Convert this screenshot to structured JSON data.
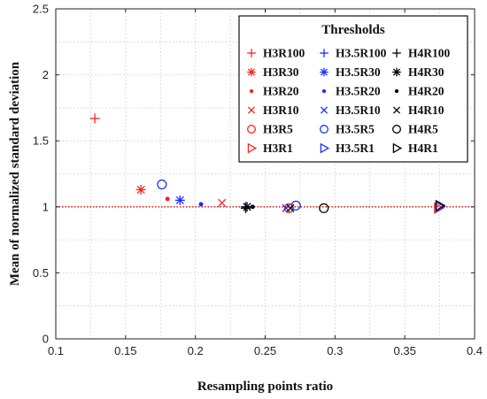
{
  "chart_data": {
    "type": "scatter",
    "xlabel": "Resampling points ratio",
    "ylabel": "Mean of normalized standard deviation",
    "xlim": [
      0.1,
      0.4
    ],
    "ylim": [
      0,
      2.5
    ],
    "xticks": [
      0.1,
      0.15,
      0.2,
      0.25,
      0.3,
      0.35,
      0.4
    ],
    "xtick_labels": [
      "0.1",
      "0.15",
      "0.2",
      "0.25",
      "0.3",
      "0.35",
      "0.4"
    ],
    "yticks": [
      0,
      0.5,
      1,
      1.5,
      2,
      2.5
    ],
    "ytick_labels": [
      "0",
      "0.5",
      "1",
      "1.5",
      "2",
      "2.5"
    ],
    "grid": true,
    "reference_line": {
      "y": 1,
      "style": "dotted",
      "color": "#e00000"
    },
    "legend": {
      "title": "Thresholds",
      "position": "top-right",
      "columns": 3
    },
    "colors": {
      "H3": "#ff2020",
      "H3.5": "#1a2fff",
      "H4": "#000000"
    },
    "series": [
      {
        "name": "H3R100",
        "marker": "plus",
        "color": "#ff2020",
        "x": [
          0.128
        ],
        "y": [
          1.67
        ]
      },
      {
        "name": "H3R30",
        "marker": "asterisk",
        "color": "#ff2020",
        "x": [
          0.161
        ],
        "y": [
          1.13
        ]
      },
      {
        "name": "H3R20",
        "marker": "dot",
        "color": "#ff2020",
        "x": [
          0.18
        ],
        "y": [
          1.06
        ]
      },
      {
        "name": "H3R10",
        "marker": "x",
        "color": "#ff2020",
        "x": [
          0.219
        ],
        "y": [
          1.03
        ]
      },
      {
        "name": "H3R5",
        "marker": "circle",
        "color": "#ff2020",
        "x": [
          0.267
        ],
        "y": [
          0.99
        ]
      },
      {
        "name": "H3R1",
        "marker": "triangle",
        "color": "#ff2020",
        "x": [
          0.374
        ],
        "y": [
          0.99
        ]
      },
      {
        "name": "H3.5R100",
        "marker": "plus",
        "color": "#1a2fff",
        "x": [
          0.236
        ],
        "y": [
          1.0
        ]
      },
      {
        "name": "H3.5R30",
        "marker": "asterisk",
        "color": "#1a2fff",
        "x": [
          0.189
        ],
        "y": [
          1.05
        ]
      },
      {
        "name": "H3.5R20",
        "marker": "dot",
        "color": "#1a2fff",
        "x": [
          0.204
        ],
        "y": [
          1.02
        ]
      },
      {
        "name": "H3.5R10",
        "marker": "x",
        "color": "#1a2fff",
        "x": [
          0.265
        ],
        "y": [
          0.99
        ]
      },
      {
        "name": "H3.5R5",
        "marker": "circle",
        "color": "#1a2fff",
        "x": [
          0.176,
          0.272
        ],
        "y": [
          1.17,
          1.01
        ]
      },
      {
        "name": "H3.5R1",
        "marker": "triangle",
        "color": "#1a2fff",
        "x": [
          0.375
        ],
        "y": [
          1.0
        ]
      },
      {
        "name": "H4R100",
        "marker": "plus",
        "color": "#000000",
        "x": [
          0.236
        ],
        "y": [
          0.99
        ]
      },
      {
        "name": "H4R30",
        "marker": "asterisk",
        "color": "#000000",
        "x": [
          0.237
        ],
        "y": [
          1.0
        ]
      },
      {
        "name": "H4R20",
        "marker": "dot",
        "color": "#000000",
        "x": [
          0.241
        ],
        "y": [
          1.0
        ]
      },
      {
        "name": "H4R10",
        "marker": "x",
        "color": "#000000",
        "x": [
          0.268
        ],
        "y": [
          0.99
        ]
      },
      {
        "name": "H4R5",
        "marker": "circle",
        "color": "#000000",
        "x": [
          0.292
        ],
        "y": [
          0.99
        ]
      },
      {
        "name": "H4R1",
        "marker": "triangle",
        "color": "#000000",
        "x": [
          0.375
        ],
        "y": [
          1.01
        ]
      }
    ]
  }
}
